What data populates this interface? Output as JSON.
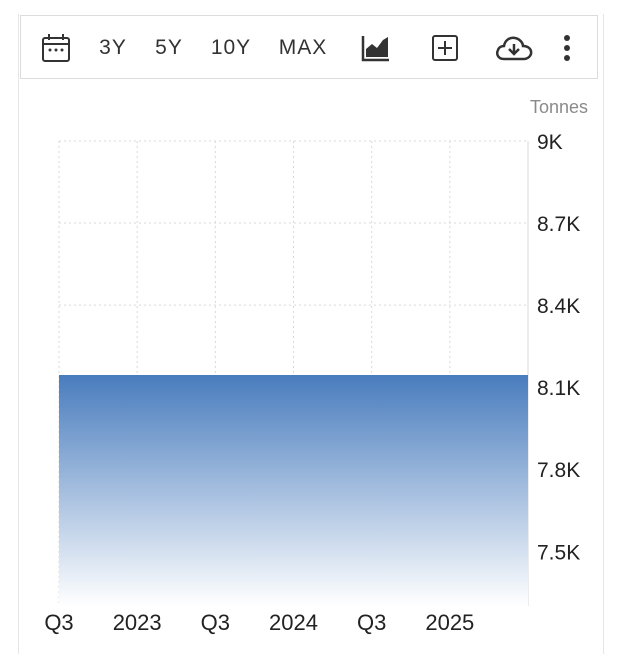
{
  "toolbar": {
    "items": [
      {
        "name": "calendar-icon",
        "label": ""
      },
      {
        "name": "range-3y-button",
        "label": "3Y"
      },
      {
        "name": "range-5y-button",
        "label": "5Y"
      },
      {
        "name": "range-10y-button",
        "label": "10Y"
      },
      {
        "name": "range-max-button",
        "label": "MAX"
      },
      {
        "name": "area-chart-icon",
        "label": ""
      },
      {
        "name": "add-box-icon",
        "label": ""
      },
      {
        "name": "cloud-download-icon",
        "label": ""
      },
      {
        "name": "more-vertical-icon",
        "label": ""
      }
    ]
  },
  "chart_data": {
    "type": "area",
    "unit_label": "Tonnes",
    "x_ticks": [
      "Q3",
      "2023",
      "Q3",
      "2024",
      "Q3",
      "2025"
    ],
    "y_ticks": [
      "9K",
      "8.7K",
      "8.4K",
      "8.1K",
      "7.8K",
      "7.5K"
    ],
    "y_tick_values": [
      9000,
      8700,
      8400,
      8100,
      7800,
      7500
    ],
    "ylim": [
      7300,
      9000
    ],
    "series": [
      {
        "values": [
          8141,
          8141,
          8141,
          8141,
          8141,
          8141,
          8141
        ]
      }
    ],
    "x": [
      "2022 Q3",
      "2023",
      "2023 Q3",
      "2024",
      "2024 Q3",
      "2025",
      "2025 Q2"
    ],
    "grid": true,
    "colors": {
      "fill_top": "#4a7dbe",
      "fill_bottom": "#ffffff",
      "grid": "#d9d9d9"
    }
  }
}
